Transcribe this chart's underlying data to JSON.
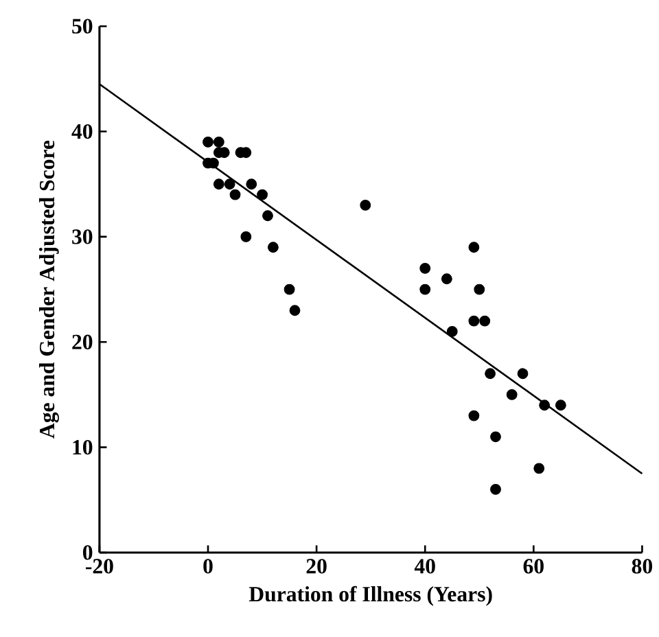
{
  "chart_data": {
    "type": "scatter",
    "xlabel": "Duration of Illness (Years)",
    "ylabel": "Age and Gender Adjusted Score",
    "xlim": [
      -20,
      80
    ],
    "ylim": [
      0,
      50
    ],
    "xticks": [
      -20,
      0,
      20,
      40,
      60,
      80
    ],
    "yticks": [
      0,
      10,
      20,
      30,
      40,
      50
    ],
    "marker": "circle",
    "series": [
      {
        "color": "#000000",
        "x": [
          0,
          0,
          1,
          2,
          2,
          3,
          2,
          4,
          5,
          6,
          7,
          7,
          8,
          10,
          11,
          12,
          15,
          16,
          29,
          40,
          40,
          44,
          45,
          49,
          50,
          49,
          51,
          52,
          53,
          53,
          49,
          56,
          58,
          61,
          62,
          65
        ],
        "values": [
          39,
          37,
          37,
          39,
          38,
          38,
          35,
          35,
          34,
          38,
          38,
          30,
          35,
          34,
          32,
          29,
          25,
          23,
          33,
          27,
          25,
          26,
          21,
          29,
          25,
          22,
          22,
          17,
          11,
          6,
          13,
          15,
          17,
          8,
          14,
          14
        ]
      },
      {
        "type": "line",
        "color": "#000000",
        "line_style": "solid",
        "marker": "none",
        "x": [
          -20,
          80
        ],
        "values": [
          44.5,
          7.5
        ]
      }
    ]
  }
}
